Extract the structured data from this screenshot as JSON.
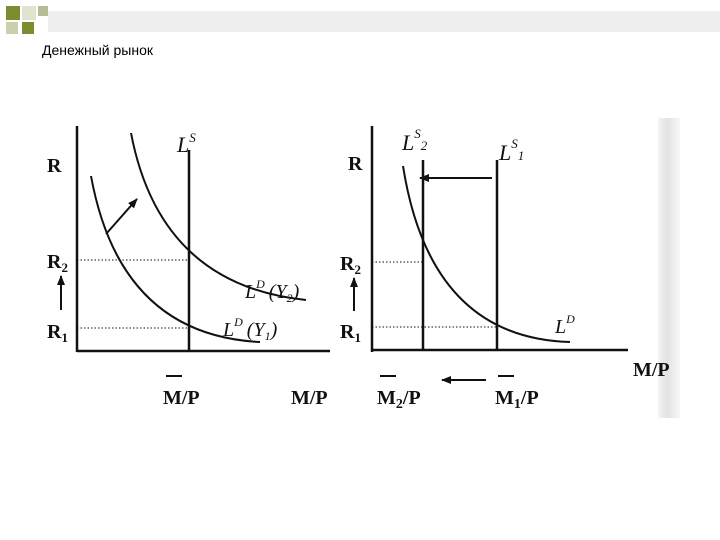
{
  "header": {
    "title": "Денежный рынок"
  },
  "colors": {
    "deco_square": "#7a8e2f",
    "ink": "#111111"
  },
  "left_panel": {
    "y_axis_label": "R",
    "r2_label": "R",
    "r2_sub": "2",
    "r1_label": "R",
    "r1_sub": "1",
    "supply_label": "L",
    "supply_sup": "S",
    "demand_y2_label": "L",
    "demand_y2_sup": "D",
    "demand_y2_arg": "(Y",
    "demand_y2_sub": "2",
    "demand_y1_label": "L",
    "demand_y1_sup": "D",
    "demand_y1_arg": "(Y",
    "demand_y1_sub": "1",
    "m_label": "M/P",
    "x_axis_label": "M/P"
  },
  "right_panel": {
    "y_axis_label": "R",
    "r2_label": "R",
    "r2_sub": "2",
    "r1_label": "R",
    "r1_sub": "1",
    "supply2_label": "L",
    "supply2_sup": "S",
    "supply2_sub": "2",
    "supply1_label": "L",
    "supply1_sup": "S",
    "supply1_sub": "1",
    "demand_label": "L",
    "demand_sup": "D",
    "m2_label": "M",
    "m2_sub": "2",
    "m2_tail": "/P",
    "m1_label": "M",
    "m1_sub": "1",
    "m1_tail": "/P",
    "x_axis_label": "M/P"
  }
}
